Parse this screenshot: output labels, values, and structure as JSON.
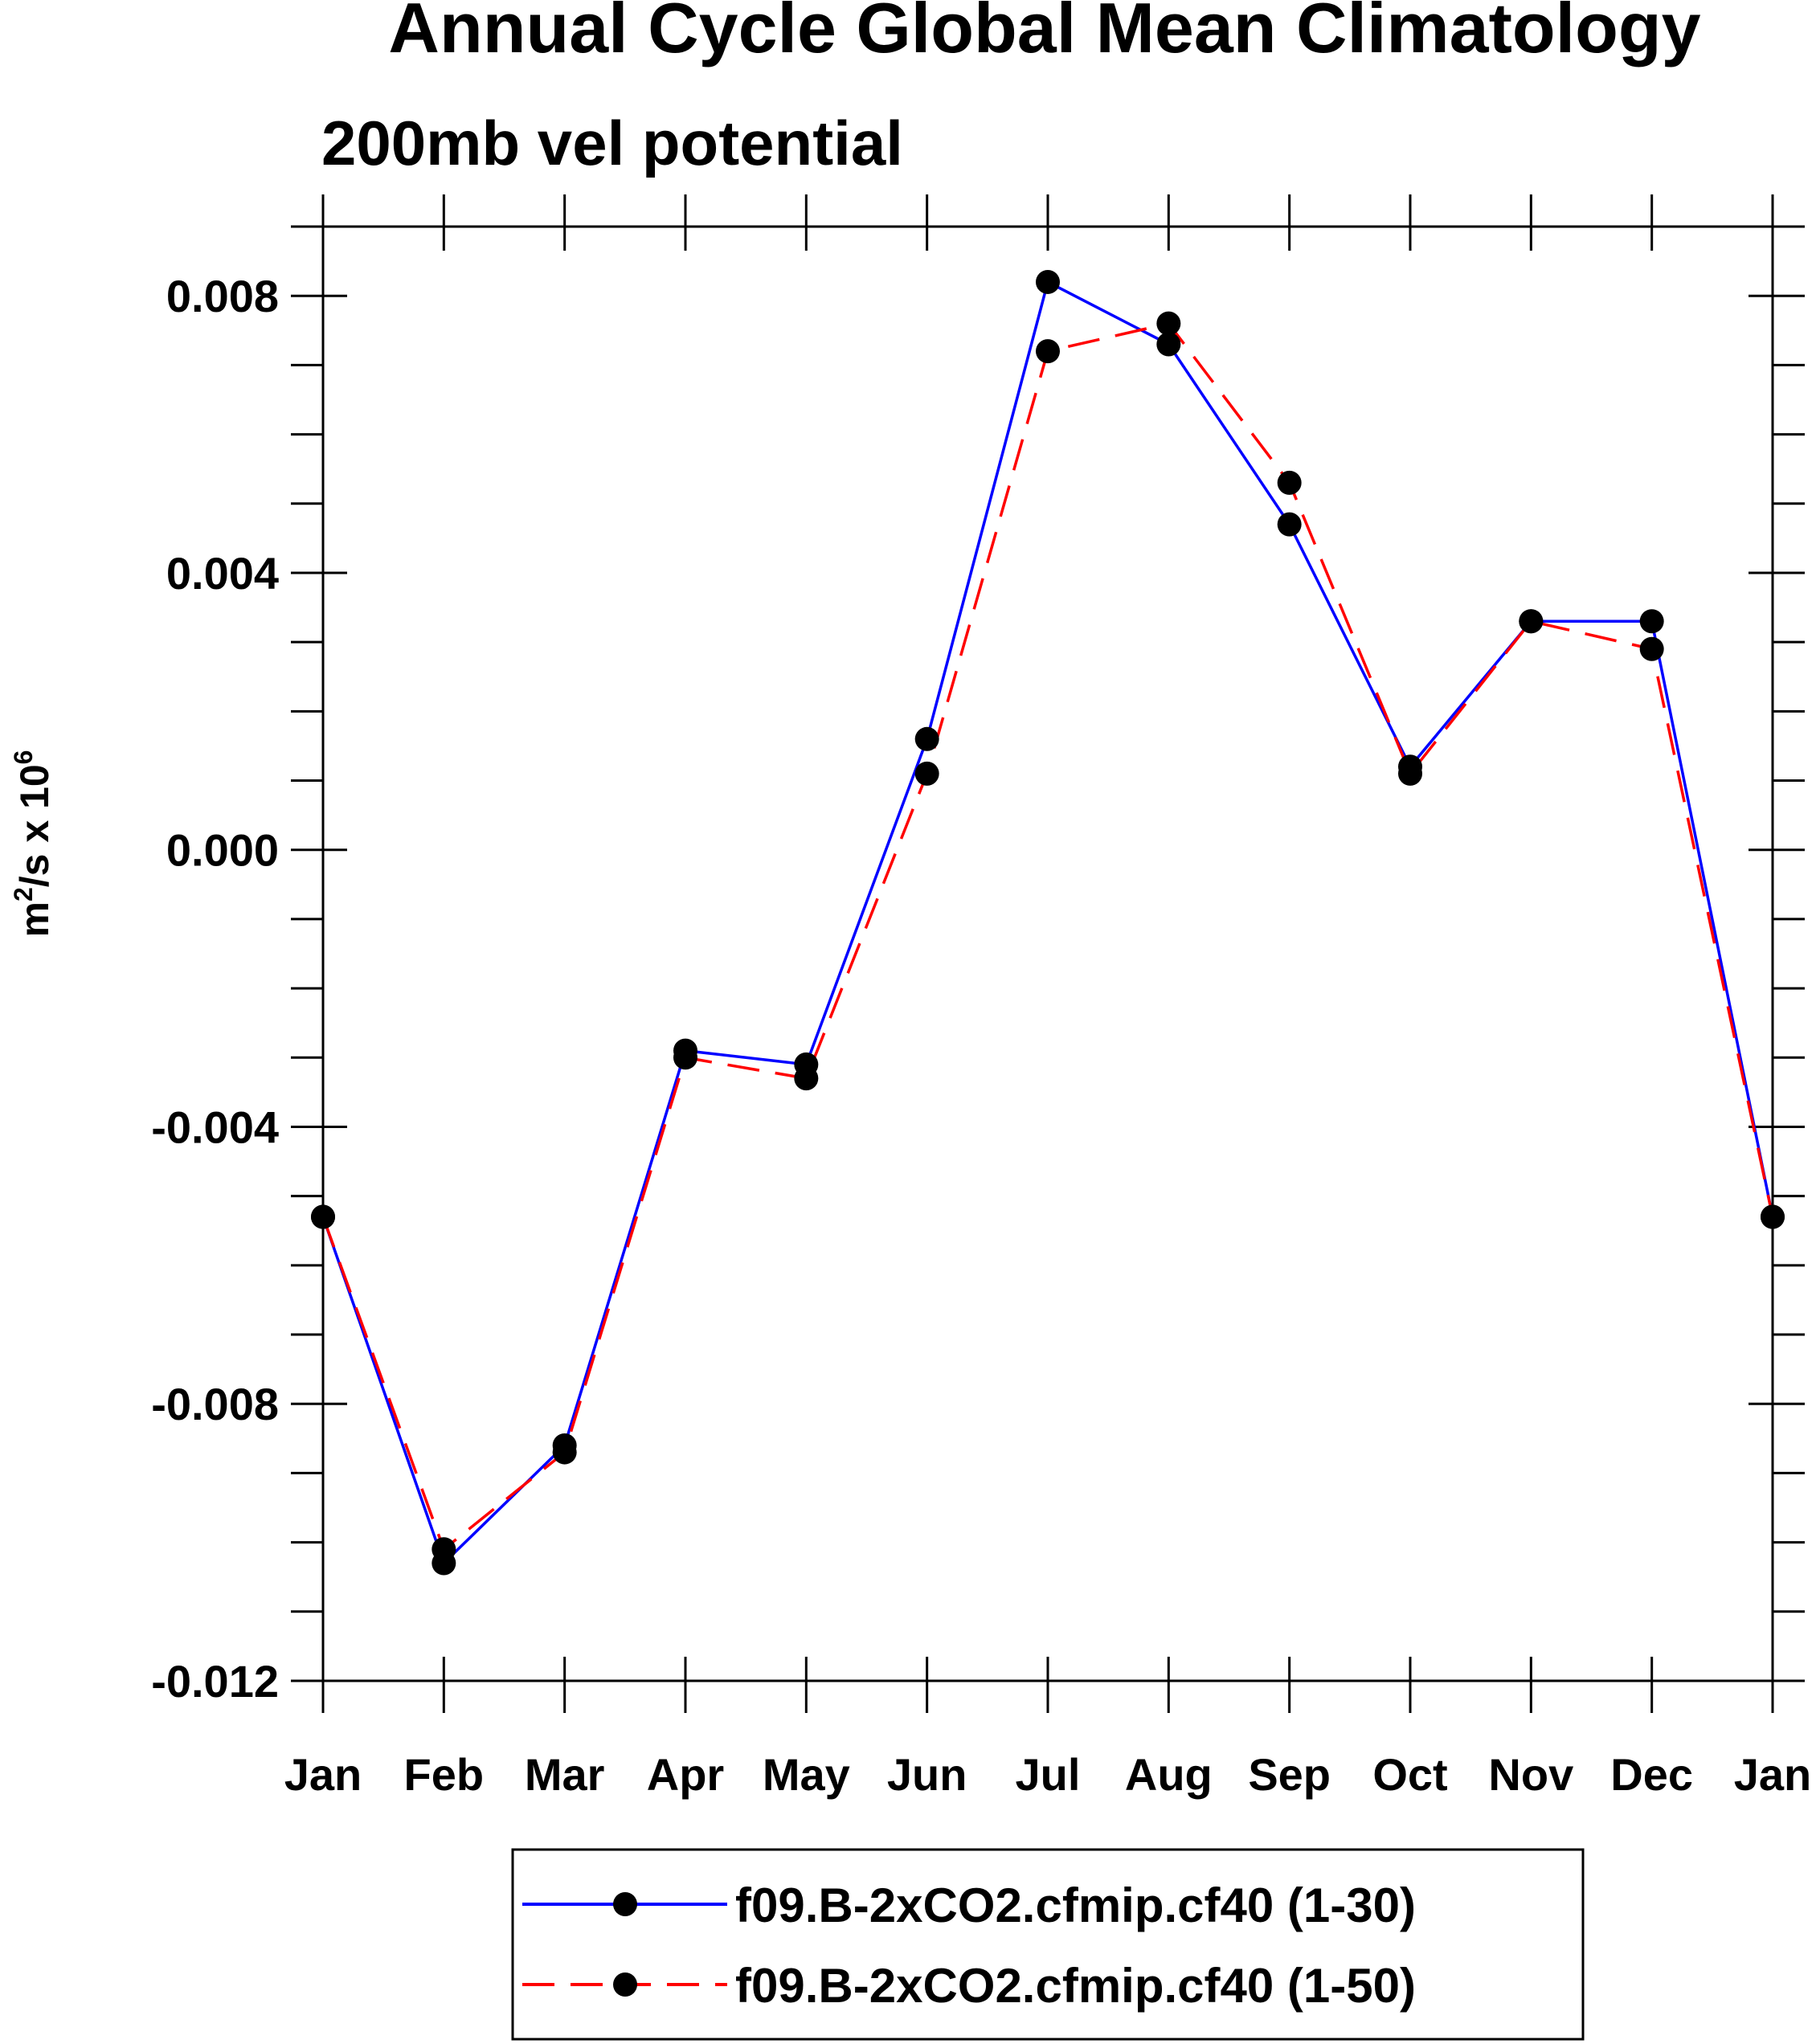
{
  "chart_data": {
    "type": "line",
    "title": "Annual Cycle Global Mean Climatology",
    "subtitle": "200mb vel potential",
    "ylabel": {
      "base": "m",
      "sup1": "2",
      "mid": "/s x 10",
      "sup2": "6"
    },
    "xlabel": "",
    "categories": [
      "Jan",
      "Feb",
      "Mar",
      "Apr",
      "May",
      "Jun",
      "Jul",
      "Aug",
      "Sep",
      "Oct",
      "Nov",
      "Dec",
      "Jan"
    ],
    "ylim": [
      -0.012,
      0.009
    ],
    "yticks": [
      -0.012,
      -0.008,
      -0.004,
      0.0,
      0.004,
      0.008
    ],
    "ytick_labels": [
      "-0.012",
      "-0.008",
      "-0.004",
      "0.000",
      "0.004",
      "0.008"
    ],
    "series": [
      {
        "name": "f09.B-2xCO2.cfmip.cf40 (1-30)",
        "color": "#0000ff",
        "dash": "solid",
        "values": [
          -0.0053,
          -0.0103,
          -0.0086,
          -0.0029,
          -0.0031,
          0.0016,
          0.0082,
          0.0073,
          0.0047,
          0.0012,
          0.0033,
          0.0033,
          -0.0053
        ]
      },
      {
        "name": "f09.B-2xCO2.cfmip.cf40 (1-50)",
        "color": "#ff0000",
        "dash": "dashed",
        "values": [
          -0.0053,
          -0.0101,
          -0.0087,
          -0.003,
          -0.0033,
          0.0011,
          0.0072,
          0.0076,
          0.0053,
          0.0011,
          0.0033,
          0.0029,
          -0.0053
        ]
      }
    ],
    "legend_position": "bottom-center"
  }
}
